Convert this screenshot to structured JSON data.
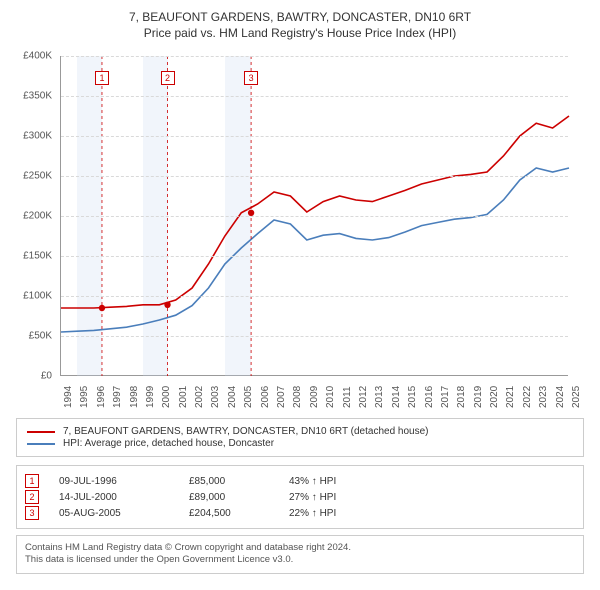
{
  "title1": "7, BEAUFONT GARDENS, BAWTRY, DONCASTER, DN10 6RT",
  "title2": "Price paid vs. HM Land Registry's House Price Index (HPI)",
  "chart": {
    "type": "line",
    "background_color": "#ffffff",
    "grid_color": "#d9d9d9",
    "ylim": [
      0,
      400000
    ],
    "ytick_step": 50000,
    "yticks": [
      "£0",
      "£50K",
      "£100K",
      "£150K",
      "£200K",
      "£250K",
      "£300K",
      "£350K",
      "£400K"
    ],
    "xlim": [
      1994,
      2025
    ],
    "xticks": [
      "1994",
      "1995",
      "1996",
      "1997",
      "1998",
      "1999",
      "2000",
      "2001",
      "2002",
      "2003",
      "2004",
      "2005",
      "2006",
      "2007",
      "2008",
      "2009",
      "2010",
      "2011",
      "2012",
      "2013",
      "2014",
      "2015",
      "2016",
      "2017",
      "2018",
      "2019",
      "2020",
      "2021",
      "2022",
      "2023",
      "2024",
      "2025"
    ],
    "series": [
      {
        "name": "price_paid",
        "label": "7, BEAUFONT GARDENS, BAWTRY, DONCASTER, DN10 6RT (detached house)",
        "color": "#cc0000",
        "line_width": 1.6,
        "y": [
          85,
          85,
          85,
          86,
          87,
          89,
          89,
          95,
          110,
          140,
          175,
          204,
          215,
          230,
          225,
          205,
          218,
          225,
          220,
          218,
          225,
          232,
          240,
          245,
          250,
          252,
          255,
          275,
          300,
          316,
          310,
          325
        ],
        "sale_markers": [
          {
            "n": "1",
            "x": 1996.5,
            "y": 85
          },
          {
            "n": "2",
            "x": 2000.5,
            "y": 89
          },
          {
            "n": "3",
            "x": 2005.6,
            "y": 204
          }
        ]
      },
      {
        "name": "hpi",
        "label": "HPI: Average price, detached house, Doncaster",
        "color": "#4a7ebb",
        "line_width": 1.6,
        "y": [
          55,
          56,
          57,
          59,
          61,
          65,
          70,
          76,
          88,
          110,
          140,
          160,
          178,
          195,
          190,
          170,
          176,
          178,
          172,
          170,
          173,
          180,
          188,
          192,
          196,
          198,
          202,
          220,
          245,
          260,
          255,
          260
        ]
      }
    ],
    "band_ranges": [
      [
        1995,
        1996.5
      ],
      [
        1999,
        2000.5
      ],
      [
        2004,
        2005.6
      ]
    ]
  },
  "sales": [
    {
      "n": "1",
      "date": "09-JUL-1996",
      "price": "£85,000",
      "pct": "43% ↑ HPI"
    },
    {
      "n": "2",
      "date": "14-JUL-2000",
      "price": "£89,000",
      "pct": "27% ↑ HPI"
    },
    {
      "n": "3",
      "date": "05-AUG-2005",
      "price": "£204,500",
      "pct": "22% ↑ HPI"
    }
  ],
  "footnote1": "Contains HM Land Registry data © Crown copyright and database right 2024.",
  "footnote2": "This data is licensed under the Open Government Licence v3.0."
}
